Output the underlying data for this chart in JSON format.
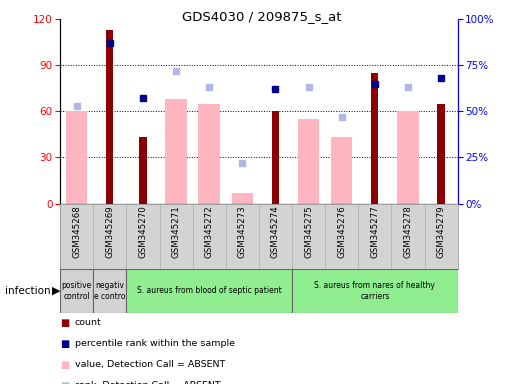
{
  "title": "GDS4030 / 209875_s_at",
  "samples": [
    "GSM345268",
    "GSM345269",
    "GSM345270",
    "GSM345271",
    "GSM345272",
    "GSM345273",
    "GSM345274",
    "GSM345275",
    "GSM345276",
    "GSM345277",
    "GSM345278",
    "GSM345279"
  ],
  "count_values": [
    null,
    113,
    43,
    null,
    null,
    null,
    60,
    null,
    null,
    85,
    null,
    65
  ],
  "rank_values": [
    null,
    87,
    57,
    null,
    null,
    null,
    62,
    null,
    null,
    65,
    null,
    68
  ],
  "value_absent": [
    60,
    null,
    null,
    68,
    65,
    7,
    null,
    55,
    43,
    null,
    60,
    null
  ],
  "rank_absent": [
    53,
    null,
    null,
    72,
    63,
    22,
    null,
    63,
    47,
    null,
    63,
    null
  ],
  "ylim_left": [
    0,
    120
  ],
  "ylim_right": [
    0,
    100
  ],
  "yticks_left": [
    0,
    30,
    60,
    90,
    120
  ],
  "yticks_right": [
    0,
    25,
    50,
    75,
    100
  ],
  "yticklabels_right": [
    "0%",
    "25%",
    "50%",
    "75%",
    "100%"
  ],
  "infection_groups": [
    {
      "label": "positive\ncontrol",
      "start": 0,
      "end": 1,
      "color": "#d3d3d3"
    },
    {
      "label": "negativ\ne contro",
      "start": 1,
      "end": 2,
      "color": "#d3d3d3"
    },
    {
      "label": "S. aureus from blood of septic patient",
      "start": 2,
      "end": 7,
      "color": "#90ee90"
    },
    {
      "label": "S. aureus from nares of healthy\ncarriers",
      "start": 7,
      "end": 12,
      "color": "#90ee90"
    }
  ],
  "count_color": "#8b0000",
  "rank_color": "#00008b",
  "value_absent_color": "#ffb6c1",
  "rank_absent_color": "#b0b8e8",
  "sample_bg_color": "#d3d3d3",
  "sample_border_color": "#aaaaaa"
}
